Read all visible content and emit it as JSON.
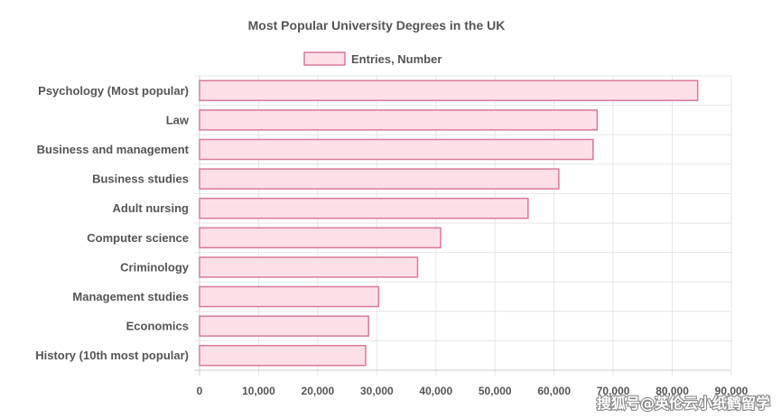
{
  "chart_data": {
    "type": "bar",
    "orientation": "horizontal",
    "title": "Most Popular University Degrees in the UK",
    "categories": [
      "Psychology (Most popular)",
      "Law",
      "Business and management",
      "Business studies",
      "Adult nursing",
      "Computer science",
      "Criminology",
      "Management studies",
      "Economics",
      "History (10th most popular)"
    ],
    "series": [
      {
        "name": "Entries, Number",
        "values": [
          84300,
          67300,
          66600,
          60800,
          55600,
          40800,
          36900,
          30300,
          28600,
          28100
        ]
      }
    ],
    "xlim": [
      0,
      90000
    ],
    "xticks": [
      0,
      10000,
      20000,
      30000,
      40000,
      50000,
      60000,
      70000,
      80000,
      90000
    ],
    "xtick_labels": [
      "0",
      "10,000",
      "20,000",
      "30,000",
      "40,000",
      "50,000",
      "60,000",
      "70,000",
      "80,000",
      "90,000"
    ],
    "grid": true,
    "legend_position": "top",
    "colors": {
      "bar_fill": "#fde0e7",
      "bar_stroke": "#d9789a",
      "grid": "#e6e6e6",
      "text": "#555555"
    }
  },
  "watermark": "搜狐号@英伦云小纸鹤留学"
}
